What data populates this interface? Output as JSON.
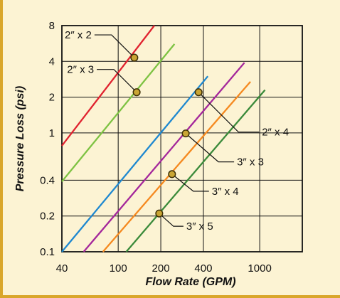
{
  "chart_data": {
    "type": "line",
    "title": "",
    "xlabel": "Flow Rate (GPM)",
    "ylabel": "Pressure Loss (psi)",
    "x_scale": "log",
    "y_scale": "log",
    "xlim": [
      40,
      2000
    ],
    "ylim": [
      0.1,
      8
    ],
    "x_ticks": [
      {
        "value": 40,
        "label": "40"
      },
      {
        "value": 100,
        "label": "100"
      },
      {
        "value": 200,
        "label": "200"
      },
      {
        "value": 400,
        "label": "400"
      },
      {
        "value": 1000,
        "label": "1000"
      }
    ],
    "y_ticks": [
      {
        "value": 8,
        "label": "8"
      },
      {
        "value": 4,
        "label": "4"
      },
      {
        "value": 2,
        "label": "2"
      },
      {
        "value": 1,
        "label": "1"
      },
      {
        "value": 0.4,
        "label": "0.4"
      },
      {
        "value": 0.2,
        "label": "0.2"
      },
      {
        "value": 0.1,
        "label": "0.1"
      }
    ],
    "grid": true,
    "series": [
      {
        "name": "2″ x 2",
        "color": "#e0222f",
        "points": [
          [
            40,
            0.78
          ],
          [
            180,
            8
          ]
        ],
        "marker": [
          130,
          4.3
        ]
      },
      {
        "name": "2″ x 3",
        "color": "#7dc242",
        "points": [
          [
            40,
            0.39
          ],
          [
            250,
            5.6
          ]
        ],
        "marker": [
          135,
          2.2
        ]
      },
      {
        "name": "2″ x 4",
        "color": "#1e88d0",
        "points": [
          [
            40,
            0.1
          ],
          [
            430,
            3.0
          ]
        ],
        "marker": [
          370,
          2.2
        ]
      },
      {
        "name": "3″ x 3",
        "color": "#a4279b",
        "points": [
          [
            57,
            0.1
          ],
          [
            780,
            3.9
          ]
        ],
        "marker": [
          300,
          0.99
        ]
      },
      {
        "name": "3″ x 4",
        "color": "#f5891f",
        "points": [
          [
            78,
            0.1
          ],
          [
            860,
            2.7
          ]
        ],
        "marker": [
          240,
          0.45
        ]
      },
      {
        "name": "3″ x 5",
        "color": "#3a8a3a",
        "points": [
          [
            114,
            0.1
          ],
          [
            1090,
            2.3
          ]
        ],
        "marker": [
          195,
          0.21
        ]
      }
    ]
  },
  "styles": {
    "marker_fill": "#c9a534",
    "marker_stroke": "#3d2f06",
    "frame_fill": "#fcf3d3",
    "frame_border": "#d9a62a"
  }
}
